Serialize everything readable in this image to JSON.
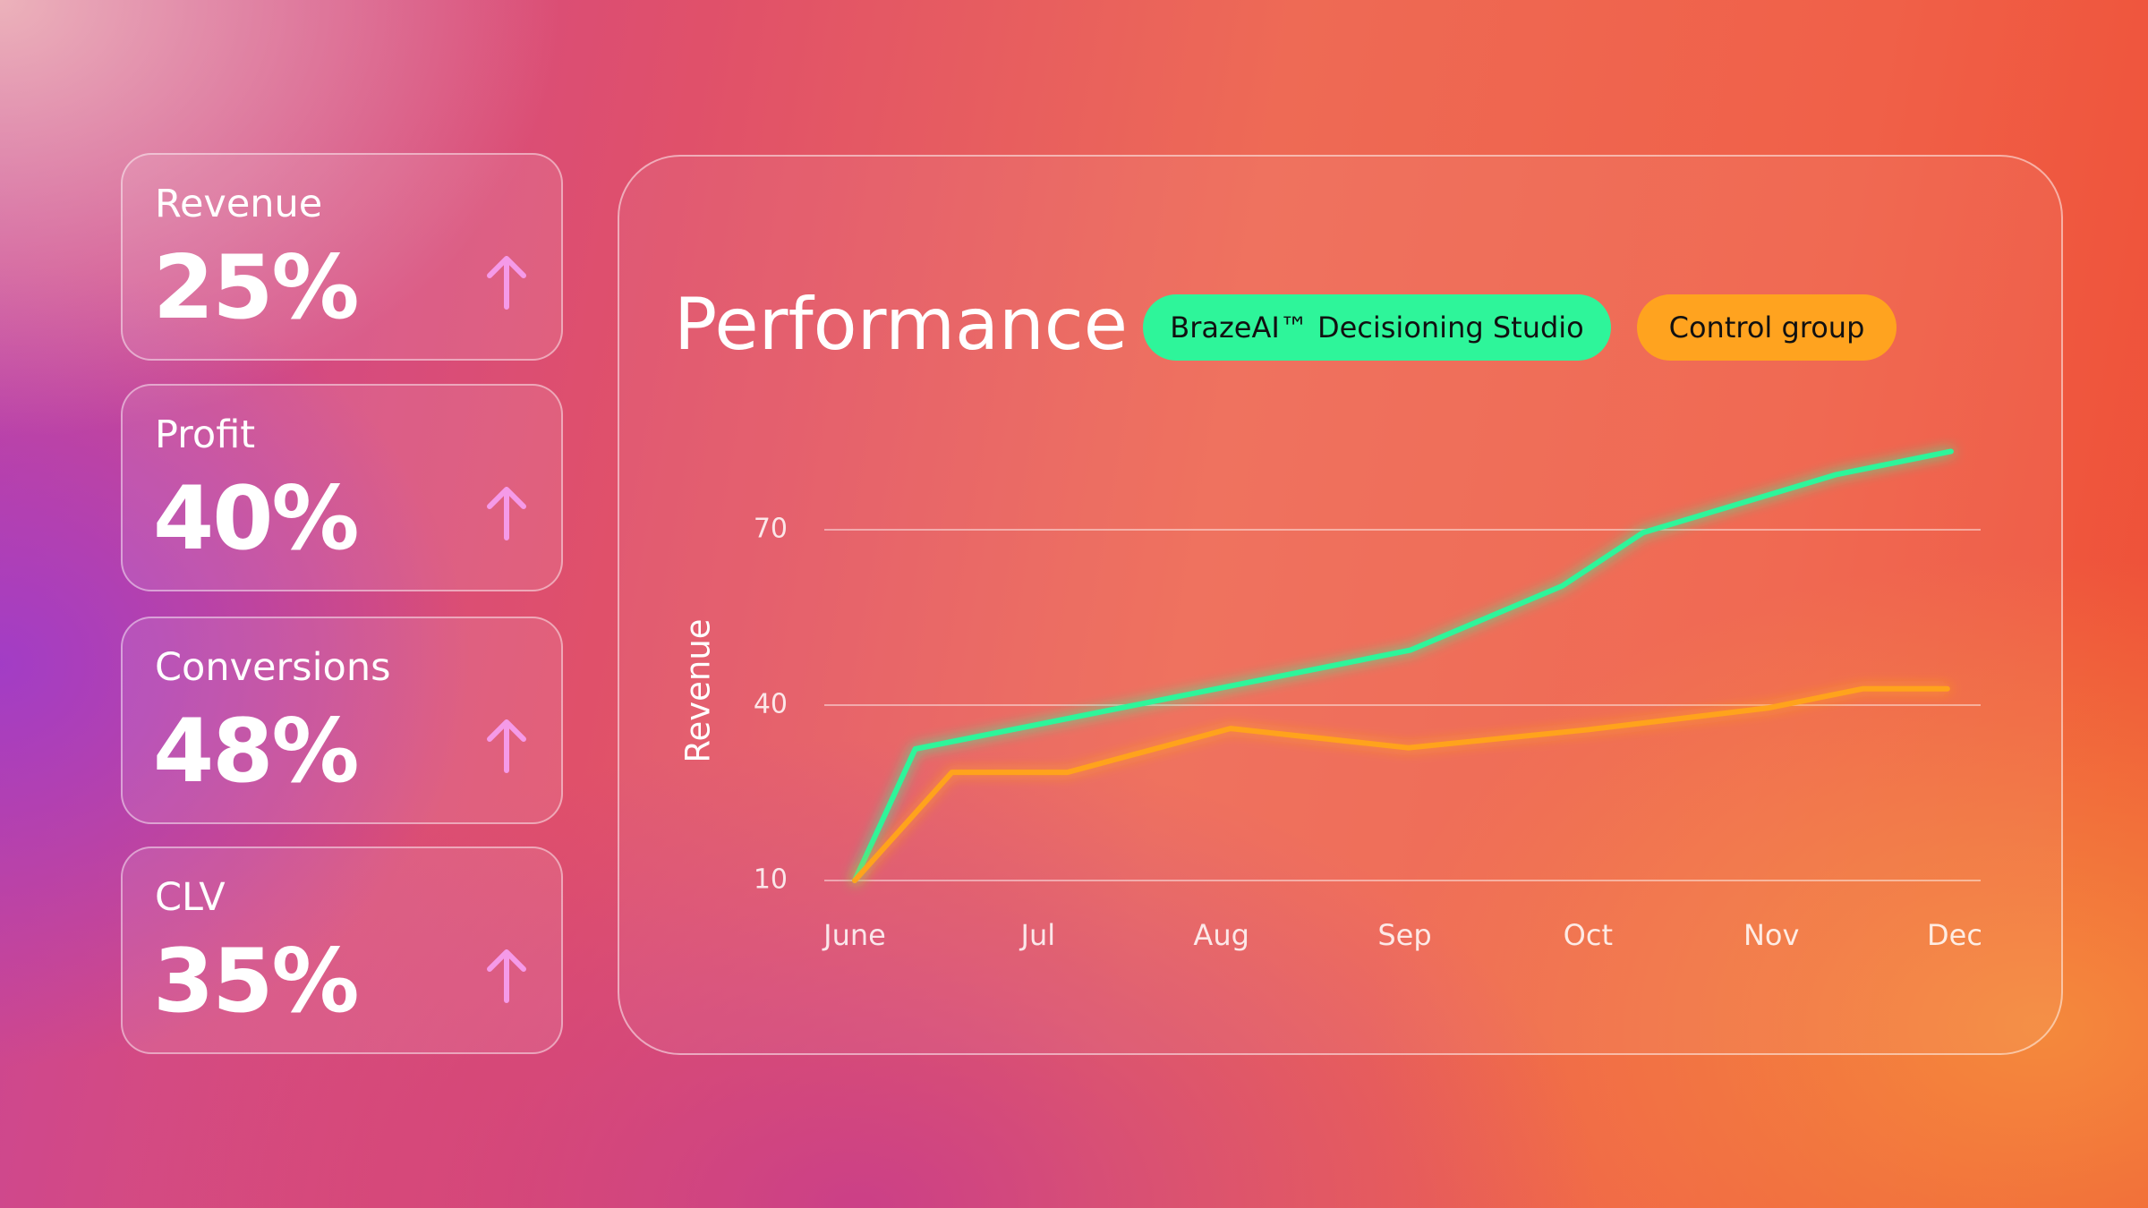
{
  "cards": [
    {
      "label": "Revenue",
      "value": "25%"
    },
    {
      "label": "Profit",
      "value": "40%"
    },
    {
      "label": "Conversions",
      "value": "48%"
    },
    {
      "label": "CLV",
      "value": "35%"
    }
  ],
  "chart_data": {
    "type": "line",
    "title": "Performance",
    "y_label": "Revenue",
    "xlim": [
      0,
      6
    ],
    "xticks": [
      {
        "value": 0,
        "label": "June"
      },
      {
        "value": 1,
        "label": "Jul"
      },
      {
        "value": 2,
        "label": "Aug"
      },
      {
        "value": 3,
        "label": "Sep"
      },
      {
        "value": 4,
        "label": "Oct"
      },
      {
        "value": 5,
        "label": "Nov"
      },
      {
        "value": 6,
        "label": "Dec"
      }
    ],
    "ylim": [
      10,
      85
    ],
    "yticks": [
      10,
      40,
      70
    ],
    "grid": true,
    "series": [
      {
        "name": "BrazeAI™ Decisioning Studio",
        "color": "#2ef59a",
        "x": [
          0,
          0.33,
          3.03,
          3.86,
          4.3,
          5.35,
          5.98
        ],
        "values": [
          10,
          32.5,
          49.4,
          60.4,
          69.5,
          79.4,
          83.4
        ]
      },
      {
        "name": "Control group",
        "color": "#ffa31f",
        "x": [
          0,
          0.53,
          1.16,
          2.05,
          3.02,
          4.0,
          4.98,
          5.5,
          5.96
        ],
        "values": [
          10,
          28.5,
          28.5,
          36,
          32.7,
          35.8,
          39.5,
          42.8,
          42.8
        ]
      }
    ]
  }
}
